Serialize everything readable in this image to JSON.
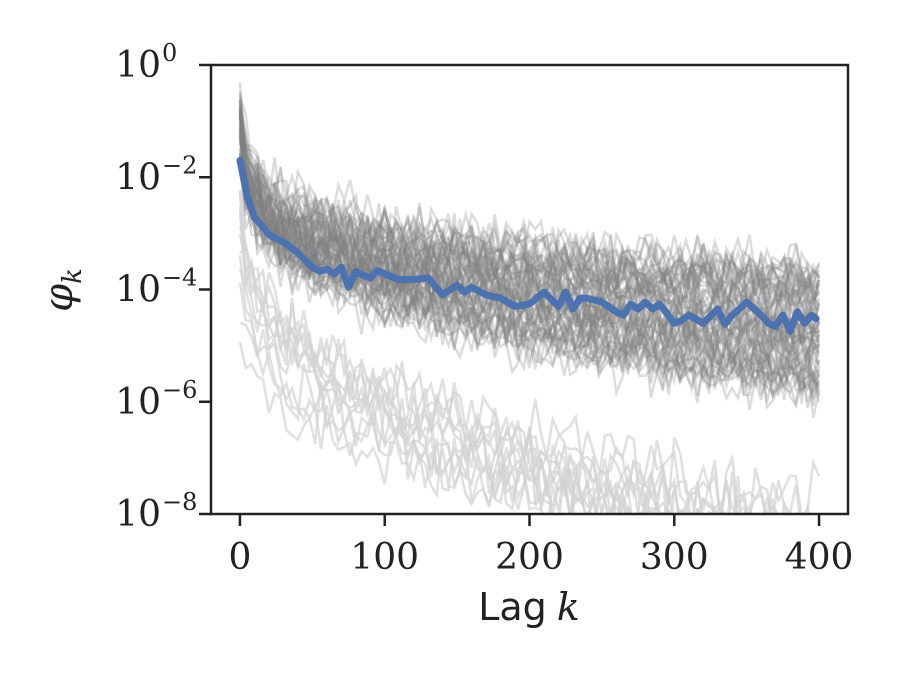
{
  "chart_data": {
    "type": "line",
    "xlabel": {
      "prefix": "Lag",
      "symbol": "k"
    },
    "ylabel": {
      "symbol": "φ",
      "subscript": "k"
    },
    "x_range": [
      -20,
      420
    ],
    "ylim": [
      1e-08,
      1
    ],
    "y_scale": "log",
    "grid": false,
    "x_ticks": [
      {
        "value": 0,
        "label": "0"
      },
      {
        "value": 100,
        "label": "100"
      },
      {
        "value": 200,
        "label": "200"
      },
      {
        "value": 300,
        "label": "300"
      },
      {
        "value": 400,
        "label": "400"
      }
    ],
    "y_ticks": [
      {
        "value": 1,
        "base": "10",
        "exp": "0"
      },
      {
        "value": 0.01,
        "base": "10",
        "exp": "−2"
      },
      {
        "value": 0.0001,
        "base": "10",
        "exp": "−4"
      },
      {
        "value": 1e-06,
        "base": "10",
        "exp": "−6"
      },
      {
        "value": 1e-08,
        "base": "10",
        "exp": "−8"
      }
    ],
    "series": [
      {
        "role": "mean",
        "color": "#4c72b0",
        "x": [
          0,
          5,
          10,
          15,
          20,
          30,
          40,
          50,
          55,
          60,
          65,
          70,
          75,
          80,
          85,
          90,
          95,
          100,
          110,
          120,
          130,
          140,
          150,
          155,
          160,
          170,
          180,
          190,
          200,
          205,
          210,
          220,
          225,
          230,
          235,
          240,
          250,
          260,
          265,
          270,
          275,
          280,
          285,
          290,
          300,
          305,
          310,
          320,
          330,
          335,
          340,
          345,
          350,
          360,
          365,
          370,
          375,
          380,
          385,
          390,
          395,
          398
        ],
        "y": [
          0.02,
          0.0045,
          0.0019,
          0.0014,
          0.00095,
          0.0007,
          0.00045,
          0.00025,
          0.00021,
          0.00023,
          0.00019,
          0.00025,
          0.00011,
          0.00021,
          0.00018,
          0.00016,
          0.00022,
          0.00019,
          0.00015,
          0.00015,
          0.00016,
          8e-05,
          0.00012,
          9e-05,
          0.00011,
          8e-05,
          7e-05,
          5e-05,
          5.5e-05,
          7e-05,
          9e-05,
          5e-05,
          9e-05,
          4.5e-05,
          7e-05,
          7e-05,
          6e-05,
          4e-05,
          3.5e-05,
          5.5e-05,
          4.5e-05,
          6e-05,
          4.5e-05,
          5.5e-05,
          2.5e-05,
          2.8e-05,
          3.5e-05,
          2.5e-05,
          4.5e-05,
          2.4e-05,
          3.5e-05,
          4.5e-05,
          6e-05,
          3.5e-05,
          2.5e-05,
          2.2e-05,
          3.5e-05,
          1.8e-05,
          4e-05,
          2.5e-05,
          3.5e-05,
          3e-05
        ]
      }
    ],
    "ensemble": {
      "role": "individual-chains",
      "dark_count": 70,
      "light_count": 12,
      "dark_color": "#808080",
      "light_color": "#d3d3d3"
    }
  }
}
